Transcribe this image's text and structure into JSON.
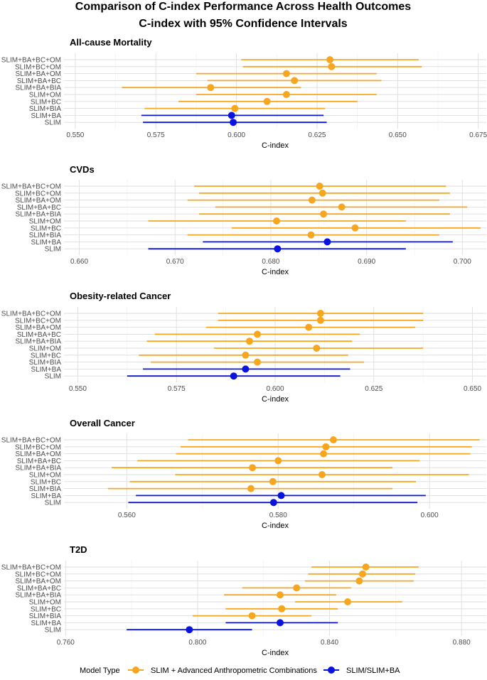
{
  "figure": {
    "title_line1": "Comparison of C-index Performance Across Health Outcomes",
    "title_line2": "C-index with 95% Confidence Intervals"
  },
  "legend": {
    "title": "Model Type",
    "items": [
      {
        "label": "SLIM + Advanced Anthropometric Combinations",
        "color": "#F5A623"
      },
      {
        "label": "SLIM/SLIM+BA",
        "color": "#0A14D8"
      }
    ]
  },
  "colors": {
    "advanced": "#F5A623",
    "baseline": "#0A14D8",
    "grid_major": "#DEDEDE",
    "grid_minor": "#EFEFEF"
  },
  "chart_data": [
    {
      "type": "forest",
      "title": "All-cause Mortality",
      "xlabel": "C-index",
      "xlim": [
        0.5465,
        0.6775
      ],
      "xticks": [
        0.55,
        0.575,
        0.6,
        0.625,
        0.65,
        0.675
      ],
      "tick_labels": [
        "0.550",
        "0.575",
        "0.600",
        "0.625",
        "0.650",
        "0.675"
      ],
      "rows": [
        {
          "model": "SLIM+BA+BC+OM",
          "est": 0.629,
          "lo": 0.6015,
          "hi": 0.6565,
          "group": "advanced"
        },
        {
          "model": "SLIM+BC+OM",
          "est": 0.6295,
          "lo": 0.602,
          "hi": 0.6575,
          "group": "advanced"
        },
        {
          "model": "SLIM+BA+OM",
          "est": 0.6155,
          "lo": 0.5875,
          "hi": 0.6435,
          "group": "advanced"
        },
        {
          "model": "SLIM+BA+BC",
          "est": 0.618,
          "lo": 0.591,
          "hi": 0.645,
          "group": "advanced"
        },
        {
          "model": "SLIM+BA+BIA",
          "est": 0.592,
          "lo": 0.5645,
          "hi": 0.62,
          "group": "advanced"
        },
        {
          "model": "SLIM+OM",
          "est": 0.6155,
          "lo": 0.5875,
          "hi": 0.6435,
          "group": "advanced"
        },
        {
          "model": "SLIM+BC",
          "est": 0.6095,
          "lo": 0.582,
          "hi": 0.6375,
          "group": "advanced"
        },
        {
          "model": "SLIM+BIA",
          "est": 0.5995,
          "lo": 0.5715,
          "hi": 0.6275,
          "group": "advanced"
        },
        {
          "model": "SLIM+BA",
          "est": 0.5985,
          "lo": 0.5705,
          "hi": 0.627,
          "group": "baseline"
        },
        {
          "model": "SLIM",
          "est": 0.599,
          "lo": 0.571,
          "hi": 0.628,
          "group": "baseline"
        }
      ]
    },
    {
      "type": "forest",
      "title": "CVDs",
      "xlabel": "C-index",
      "xlim": [
        0.6584,
        0.7025
      ],
      "xticks": [
        0.66,
        0.67,
        0.68,
        0.69,
        0.7
      ],
      "tick_labels": [
        "0.660",
        "0.670",
        "0.680",
        "0.690",
        "0.700"
      ],
      "rows": [
        {
          "model": "SLIM+BA+BC+OM",
          "est": 0.6851,
          "lo": 0.672,
          "hi": 0.6983,
          "group": "advanced"
        },
        {
          "model": "SLIM+BC+OM",
          "est": 0.6854,
          "lo": 0.6725,
          "hi": 0.6987,
          "group": "advanced"
        },
        {
          "model": "SLIM+BA+OM",
          "est": 0.6843,
          "lo": 0.6713,
          "hi": 0.6976,
          "group": "advanced"
        },
        {
          "model": "SLIM+BA+BC",
          "est": 0.6874,
          "lo": 0.6742,
          "hi": 0.7005,
          "group": "advanced"
        },
        {
          "model": "SLIM+BA+BIA",
          "est": 0.6855,
          "lo": 0.6725,
          "hi": 0.6987,
          "group": "advanced"
        },
        {
          "model": "SLIM+OM",
          "est": 0.6806,
          "lo": 0.6672,
          "hi": 0.6941,
          "group": "advanced"
        },
        {
          "model": "SLIM+BC",
          "est": 0.6888,
          "lo": 0.6759,
          "hi": 0.7019,
          "group": "advanced"
        },
        {
          "model": "SLIM+BIA",
          "est": 0.6842,
          "lo": 0.6713,
          "hi": 0.6976,
          "group": "advanced"
        },
        {
          "model": "SLIM+BA",
          "est": 0.6859,
          "lo": 0.6729,
          "hi": 0.699,
          "group": "baseline"
        },
        {
          "model": "SLIM",
          "est": 0.6807,
          "lo": 0.6672,
          "hi": 0.6941,
          "group": "baseline"
        }
      ]
    },
    {
      "type": "forest",
      "title": "Obesity-related Cancer",
      "xlabel": "C-index",
      "xlim": [
        0.5465,
        0.6535
      ],
      "xticks": [
        0.55,
        0.575,
        0.6,
        0.625,
        0.65
      ],
      "tick_labels": [
        "0.550",
        "0.575",
        "0.600",
        "0.625",
        "0.650"
      ],
      "rows": [
        {
          "model": "SLIM+BA+BC+OM",
          "est": 0.6115,
          "lo": 0.5855,
          "hi": 0.6375,
          "group": "advanced"
        },
        {
          "model": "SLIM+BC+OM",
          "est": 0.6115,
          "lo": 0.5855,
          "hi": 0.6375,
          "group": "advanced"
        },
        {
          "model": "SLIM+BA+OM",
          "est": 0.6085,
          "lo": 0.5825,
          "hi": 0.6355,
          "group": "advanced"
        },
        {
          "model": "SLIM+BA+BC",
          "est": 0.5955,
          "lo": 0.5695,
          "hi": 0.6215,
          "group": "advanced"
        },
        {
          "model": "SLIM+BA+BIA",
          "est": 0.5935,
          "lo": 0.5675,
          "hi": 0.6195,
          "group": "advanced"
        },
        {
          "model": "SLIM+OM",
          "est": 0.6105,
          "lo": 0.5845,
          "hi": 0.6375,
          "group": "advanced"
        },
        {
          "model": "SLIM+BC",
          "est": 0.5925,
          "lo": 0.5655,
          "hi": 0.6185,
          "group": "advanced"
        },
        {
          "model": "SLIM+BIA",
          "est": 0.5955,
          "lo": 0.5685,
          "hi": 0.6225,
          "group": "advanced"
        },
        {
          "model": "SLIM+BA",
          "est": 0.5925,
          "lo": 0.5665,
          "hi": 0.619,
          "group": "baseline"
        },
        {
          "model": "SLIM",
          "est": 0.5895,
          "lo": 0.5625,
          "hi": 0.6165,
          "group": "baseline"
        }
      ]
    },
    {
      "type": "forest",
      "title": "Overall Cancer",
      "xlabel": "C-index",
      "xlim": [
        0.5517,
        0.6075
      ],
      "xticks": [
        0.56,
        0.58,
        0.6
      ],
      "tick_labels": [
        "0.560",
        "0.580",
        "0.600"
      ],
      "rows": [
        {
          "model": "SLIM+BA+BC+OM",
          "est": 0.5873,
          "lo": 0.5681,
          "hi": 0.6066,
          "group": "advanced"
        },
        {
          "model": "SLIM+BC+OM",
          "est": 0.5863,
          "lo": 0.5671,
          "hi": 0.6056,
          "group": "advanced"
        },
        {
          "model": "SLIM+BA+OM",
          "est": 0.586,
          "lo": 0.5665,
          "hi": 0.6054,
          "group": "advanced"
        },
        {
          "model": "SLIM+BA+BC",
          "est": 0.58,
          "lo": 0.5614,
          "hi": 0.5987,
          "group": "advanced"
        },
        {
          "model": "SLIM+BA+BIA",
          "est": 0.5766,
          "lo": 0.558,
          "hi": 0.5951,
          "group": "advanced"
        },
        {
          "model": "SLIM+OM",
          "est": 0.5858,
          "lo": 0.5664,
          "hi": 0.6052,
          "group": "advanced"
        },
        {
          "model": "SLIM+BC",
          "est": 0.5793,
          "lo": 0.5604,
          "hi": 0.5982,
          "group": "advanced"
        },
        {
          "model": "SLIM+BIA",
          "est": 0.5764,
          "lo": 0.5575,
          "hi": 0.5951,
          "group": "advanced"
        },
        {
          "model": "SLIM+BA",
          "est": 0.5804,
          "lo": 0.5612,
          "hi": 0.5995,
          "group": "baseline"
        },
        {
          "model": "SLIM",
          "est": 0.5794,
          "lo": 0.5602,
          "hi": 0.5984,
          "group": "baseline"
        }
      ]
    },
    {
      "type": "forest",
      "title": "T2D",
      "xlabel": "C-index",
      "xlim": [
        0.7595,
        0.8875
      ],
      "xticks": [
        0.76,
        0.8,
        0.84,
        0.88
      ],
      "tick_labels": [
        "0.760",
        "0.800",
        "0.840",
        "0.880"
      ],
      "rows": [
        {
          "model": "SLIM+BA+BC+OM",
          "est": 0.851,
          "lo": 0.8345,
          "hi": 0.867,
          "group": "advanced"
        },
        {
          "model": "SLIM+BC+OM",
          "est": 0.85,
          "lo": 0.8335,
          "hi": 0.866,
          "group": "advanced"
        },
        {
          "model": "SLIM+BA+OM",
          "est": 0.849,
          "lo": 0.8325,
          "hi": 0.8655,
          "group": "advanced"
        },
        {
          "model": "SLIM+BA+BC",
          "est": 0.83,
          "lo": 0.8135,
          "hi": 0.8465,
          "group": "advanced"
        },
        {
          "model": "SLIM+BA+BIA",
          "est": 0.825,
          "lo": 0.808,
          "hi": 0.842,
          "group": "advanced"
        },
        {
          "model": "SLIM+OM",
          "est": 0.8455,
          "lo": 0.8295,
          "hi": 0.862,
          "group": "advanced"
        },
        {
          "model": "SLIM+BC",
          "est": 0.8255,
          "lo": 0.8085,
          "hi": 0.8425,
          "group": "advanced"
        },
        {
          "model": "SLIM+BIA",
          "est": 0.8165,
          "lo": 0.7985,
          "hi": 0.8345,
          "group": "advanced"
        },
        {
          "model": "SLIM+BA",
          "est": 0.825,
          "lo": 0.8085,
          "hi": 0.8425,
          "group": "baseline"
        },
        {
          "model": "SLIM",
          "est": 0.7975,
          "lo": 0.7785,
          "hi": 0.8165,
          "group": "baseline"
        }
      ]
    }
  ]
}
